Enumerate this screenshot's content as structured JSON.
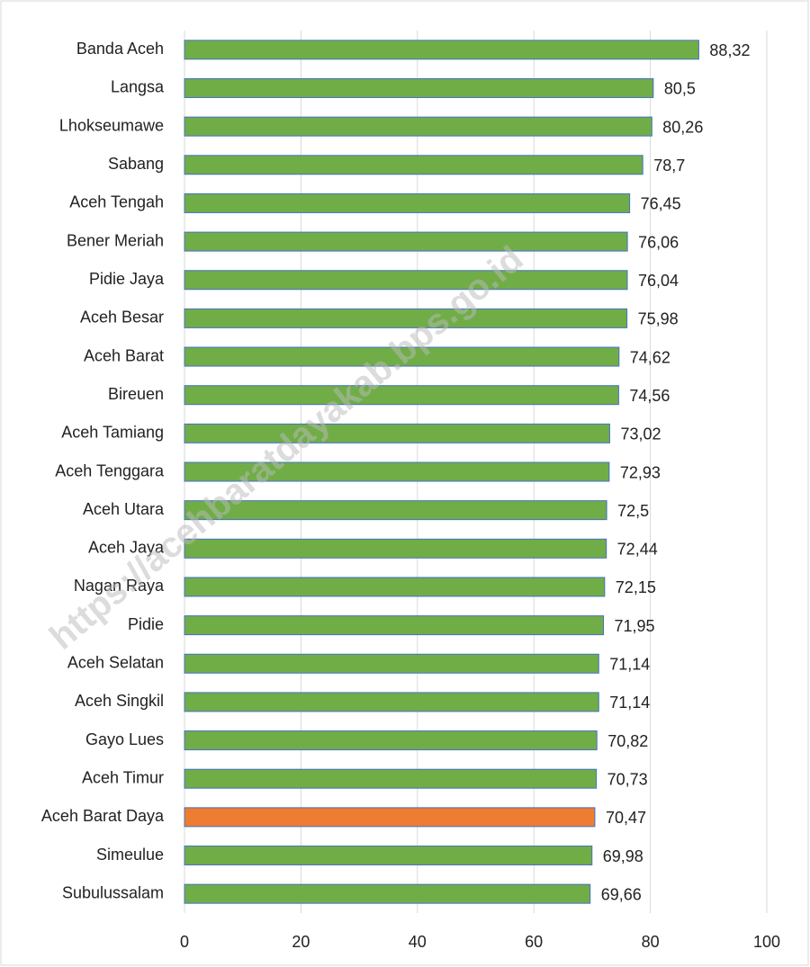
{
  "chart_data": {
    "type": "barh",
    "categories": [
      "Banda Aceh",
      "Langsa",
      "Lhokseumawe",
      "Sabang",
      "Aceh Tengah",
      "Bener Meriah",
      "Pidie Jaya",
      "Aceh Besar",
      "Aceh Barat",
      "Bireuen",
      "Aceh Tamiang",
      "Aceh Tenggara",
      "Aceh Utara",
      "Aceh Jaya",
      "Nagan Raya",
      "Pidie",
      "Aceh Selatan",
      "Aceh Singkil",
      "Gayo Lues",
      "Aceh Timur",
      "Aceh Barat Daya",
      "Simeulue",
      "Subulussalam"
    ],
    "values": [
      88.32,
      80.5,
      80.26,
      78.7,
      76.45,
      76.06,
      76.04,
      75.98,
      74.62,
      74.56,
      73.02,
      72.93,
      72.5,
      72.44,
      72.15,
      71.95,
      71.14,
      71.14,
      70.82,
      70.73,
      70.47,
      69.98,
      69.66
    ],
    "value_labels": [
      "88,32",
      "80,5",
      "80,26",
      "78,7",
      "76,45",
      "76,06",
      "76,04",
      "75,98",
      "74,62",
      "74,56",
      "73,02",
      "72,93",
      "72,5",
      "72,44",
      "72,15",
      "71,95",
      "71,14",
      "71,14",
      "70,82",
      "70,73",
      "70,47",
      "69,98",
      "69,66"
    ],
    "colors": [
      "#70ad47",
      "#70ad47",
      "#70ad47",
      "#70ad47",
      "#70ad47",
      "#70ad47",
      "#70ad47",
      "#70ad47",
      "#70ad47",
      "#70ad47",
      "#70ad47",
      "#70ad47",
      "#70ad47",
      "#70ad47",
      "#70ad47",
      "#70ad47",
      "#70ad47",
      "#70ad47",
      "#70ad47",
      "#70ad47",
      "#ed7d31",
      "#70ad47",
      "#70ad47"
    ],
    "xlim": [
      0,
      100
    ],
    "xticks": [
      0,
      20,
      40,
      60,
      80,
      100
    ],
    "grid": true,
    "annotation": "https://acehbaratdayakab.bps.go.id"
  }
}
